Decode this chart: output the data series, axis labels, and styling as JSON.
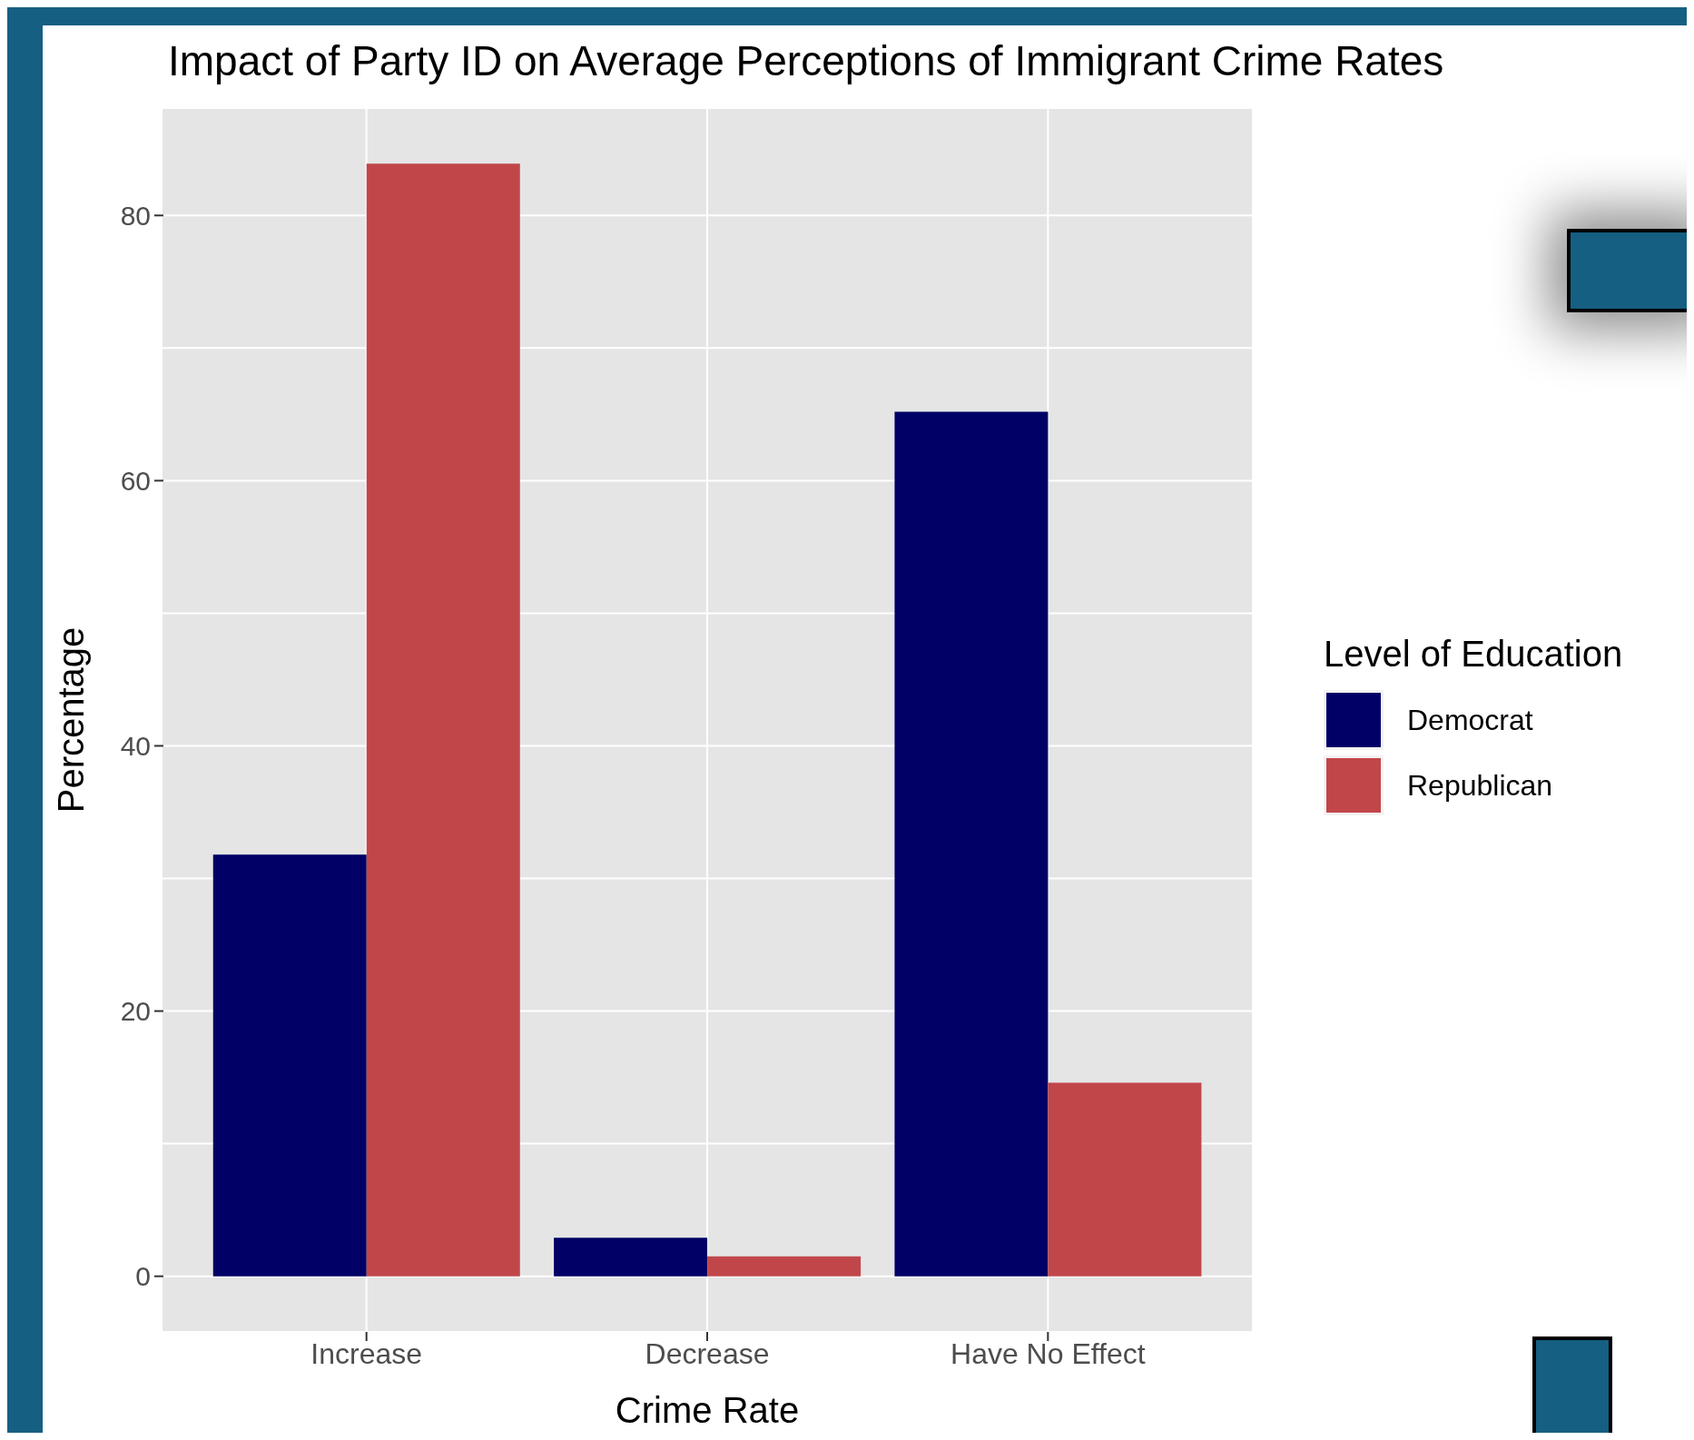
{
  "chart_data": {
    "type": "bar",
    "title": "Impact of Party ID on Average Perceptions of Immigrant Crime Rates",
    "xlabel": "Crime Rate",
    "ylabel": "Percentage",
    "legend_title": "Level of Education",
    "categories": [
      "Increase",
      "Decrease",
      "Have No Effect"
    ],
    "series": [
      {
        "name": "Democrat",
        "color": "#000066",
        "values": [
          31.8,
          2.9,
          65.2
        ]
      },
      {
        "name": "Republican",
        "color": "#c1464a",
        "values": [
          83.9,
          1.5,
          14.6
        ]
      }
    ],
    "ylim": [
      -4.2,
      88.1
    ],
    "yticks": [
      0,
      {
        "value": 10,
        "label": null
      },
      20,
      {
        "value": 30,
        "label": null
      },
      40,
      {
        "value": 50,
        "label": null
      },
      60,
      {
        "value": 70,
        "label": null
      },
      80
    ],
    "grid": true,
    "legend": "right"
  }
}
